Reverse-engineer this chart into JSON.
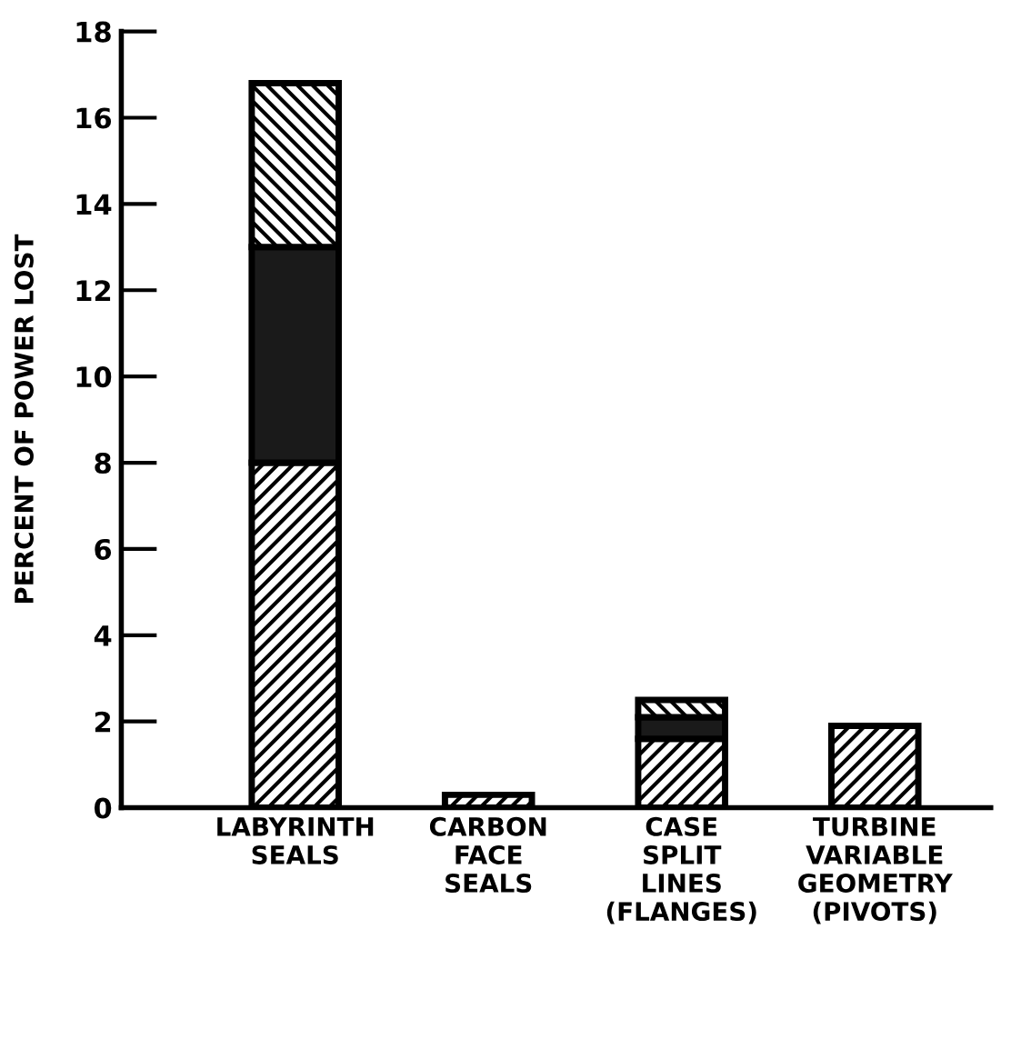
{
  "chart_data": {
    "type": "bar",
    "stacked": true,
    "ylabel": "PERCENT OF POWER LOST",
    "categories": [
      "LABYRINTH\nSEALS",
      "CARBON\nFACE\nSEALS",
      "CASE\nSPLIT\nLINES\n(FLANGES)",
      "TURBINE\nVARIABLE\nGEOMETRY\n(PIVOTS)"
    ],
    "series": [
      {
        "color": "#000000",
        "values": [
          8,
          0.3,
          1.6,
          1.9
        ]
      },
      {
        "color": "#1a1a1a",
        "values": [
          5,
          null,
          0.5,
          null
        ]
      },
      {
        "color": "#000000",
        "values": [
          3.8,
          null,
          0.4,
          null
        ]
      }
    ],
    "ylim": [
      0,
      18
    ],
    "yticks": [
      0,
      2,
      4,
      6,
      8,
      10,
      12,
      14,
      16,
      18
    ],
    "grid": false
  }
}
